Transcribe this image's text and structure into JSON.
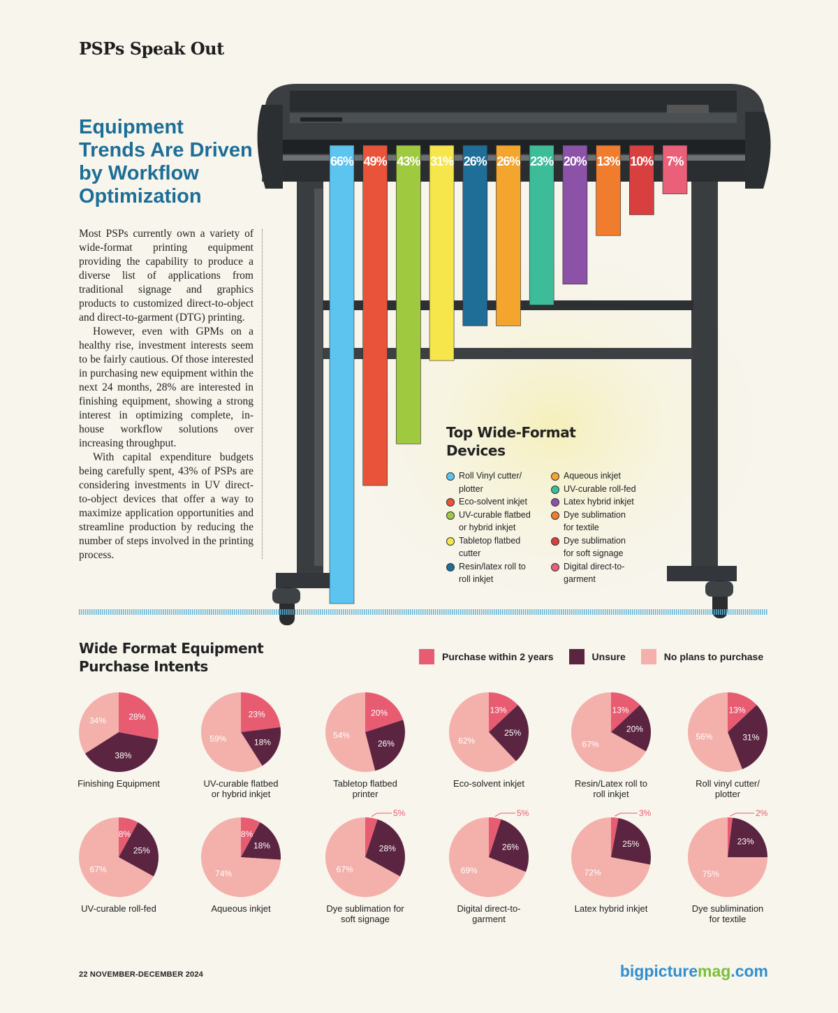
{
  "header": {
    "section_title": "PSPs Speak Out"
  },
  "article": {
    "headline": "Equipment Trends Are Driven by Workflow Optimization",
    "paragraphs": [
      "Most PSPs currently own a variety of wide-format printing equipment providing the capability to produce a diverse list of applications from traditional signage and graphics products to customized direct-to-object and direct-to-garment (DTG) printing.",
      "However, even with GPMs on a healthy rise, investment interests seem to be fairly cautious. Of those interested in purchasing new equipment within the next 24 months, 28% are interested in finishing equipment, showing a strong interest in optimizing complete, in-house workflow solutions over increasing throughput.",
      "With capital expenditure budgets being carefully spent, 43% of PSPs are considering investments in UV direct-to-object devices that offer a way to maximize application opportunities and streamline production by reducing the number of steps involved in the printing process."
    ]
  },
  "chart_data": [
    {
      "type": "bar",
      "title": "Top Wide-Format Devices",
      "categories": [
        "Roll Vinyl cutter/ plotter",
        "Eco-solvent inkjet",
        "UV-curable flatbed or hybrid inkjet",
        "Tabletop flatbed cutter",
        "Resin/latex roll to roll inkjet",
        "Aqueous inkjet",
        "UV-curable roll-fed",
        "Latex hybrid inkjet",
        "Dye sublimation for textile",
        "Dye sublimation for soft signage",
        "Digital direct-to-garment"
      ],
      "values": [
        66,
        49,
        43,
        31,
        26,
        26,
        23,
        20,
        13,
        10,
        7
      ],
      "value_labels": [
        "66%",
        "49%",
        "43%",
        "31%",
        "26%",
        "26%",
        "23%",
        "20%",
        "13%",
        "10%",
        "7%"
      ],
      "colors": [
        "#5cc4ef",
        "#e8533a",
        "#9fc93f",
        "#f6e54b",
        "#1f6e98",
        "#f4a52d",
        "#3dbc9a",
        "#8b52a8",
        "#ef7d2d",
        "#d8403f",
        "#ea6079"
      ],
      "legend_labels": [
        "Roll Vinyl cutter/\nplotter",
        "Eco-solvent inkjet",
        "UV-curable flatbed\nor hybrid inkjet",
        "Tabletop flatbed\ncutter",
        "Resin/latex roll to\nroll inkjet",
        "Aqueous inkjet",
        "UV-curable roll-fed",
        "Latex hybrid inkjet",
        "Dye sublimation\nfor textile",
        "Dye sublimation\nfor soft signage",
        "Digital direct-to-\ngarment"
      ],
      "legend_placement": "bottom-right",
      "ylim": [
        0,
        66
      ]
    },
    {
      "type": "pie",
      "title": "Wide Format Equipment Purchase Intents",
      "series_names": [
        "Purchase within 2 years",
        "Unsure",
        "No plans to purchase"
      ],
      "series_colors": [
        "#e85c72",
        "#5b2440",
        "#f4b0aa"
      ],
      "legend_placement": "top-right",
      "pies": [
        {
          "label": "Finishing Equipment",
          "values": [
            28,
            38,
            34
          ]
        },
        {
          "label": "UV-curable flatbed\nor hybrid inkjet",
          "values": [
            23,
            18,
            59
          ]
        },
        {
          "label": "Tabletop flatbed\nprinter",
          "values": [
            20,
            26,
            54
          ]
        },
        {
          "label": "Eco-solvent inkjet",
          "values": [
            13,
            25,
            62
          ]
        },
        {
          "label": "Resin/Latex roll to\nroll inkjet",
          "values": [
            13,
            20,
            67
          ]
        },
        {
          "label": "Roll vinyl cutter/\nplotter",
          "values": [
            13,
            31,
            56
          ]
        },
        {
          "label": "UV-curable roll-fed",
          "values": [
            8,
            25,
            67
          ]
        },
        {
          "label": "Aqueous inkjet",
          "values": [
            8,
            18,
            74
          ]
        },
        {
          "label": "Dye sublimation for\nsoft signage",
          "values": [
            5,
            28,
            67
          ]
        },
        {
          "label": "Digital direct-to-\ngarment",
          "values": [
            5,
            26,
            69
          ]
        },
        {
          "label": "Latex hybrid inkjet",
          "values": [
            3,
            25,
            72
          ]
        },
        {
          "label": "Dye sublimination\nfor textile",
          "values": [
            2,
            23,
            75
          ]
        }
      ]
    }
  ],
  "legend": {
    "purchase": "Purchase within 2 years",
    "unsure": "Unsure",
    "no_plans": "No plans to purchase"
  },
  "footer": {
    "page": "22  NOVEMBER-DECEMBER 2024",
    "site_part1": "bigpicture",
    "site_part2": "mag",
    "site_part3": ".com"
  },
  "icons": {
    "printer": "wide-format-cutter-illustration"
  }
}
